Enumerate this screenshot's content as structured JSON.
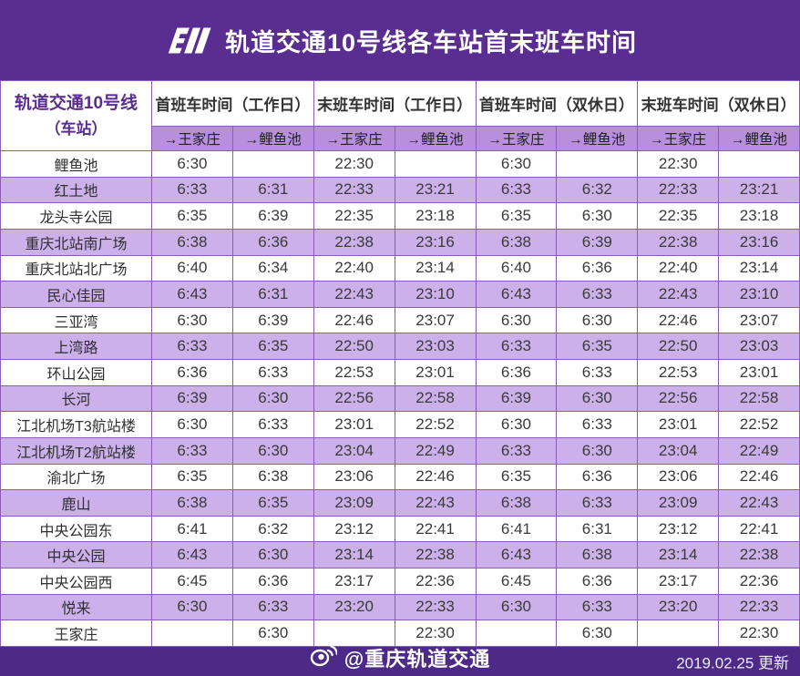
{
  "header": {
    "logo_icon": "crt-logo",
    "title": "轨道交通10号线各车站首末班车时间"
  },
  "table": {
    "corner": {
      "line1": "轨道交通10号线",
      "line2": "（车站）"
    },
    "group_headers": [
      "首班车时间（工作日）",
      "末班车时间（工作日）",
      "首班车时间（双休日）",
      "末班车时间（双休日）"
    ],
    "direction_headers": [
      "→王家庄",
      "→鲤鱼池"
    ],
    "rows": [
      {
        "station": "鲤鱼池",
        "times": [
          "6:30",
          "",
          "22:30",
          "",
          "6:30",
          "",
          "22:30",
          ""
        ]
      },
      {
        "station": "红土地",
        "times": [
          "6:33",
          "6:31",
          "22:33",
          "23:21",
          "6:33",
          "6:32",
          "22:33",
          "23:21"
        ]
      },
      {
        "station": "龙头寺公园",
        "times": [
          "6:35",
          "6:39",
          "22:35",
          "23:18",
          "6:35",
          "6:30",
          "22:35",
          "23:18"
        ]
      },
      {
        "station": "重庆北站南广场",
        "times": [
          "6:38",
          "6:36",
          "22:38",
          "23:16",
          "6:38",
          "6:39",
          "22:38",
          "23:16"
        ]
      },
      {
        "station": "重庆北站北广场",
        "times": [
          "6:40",
          "6:34",
          "22:40",
          "23:14",
          "6:40",
          "6:36",
          "22:40",
          "23:14"
        ]
      },
      {
        "station": "民心佳园",
        "times": [
          "6:43",
          "6:31",
          "22:43",
          "23:10",
          "6:43",
          "6:33",
          "22:43",
          "23:10"
        ]
      },
      {
        "station": "三亚湾",
        "times": [
          "6:30",
          "6:39",
          "22:46",
          "23:07",
          "6:30",
          "6:30",
          "22:46",
          "23:07"
        ]
      },
      {
        "station": "上湾路",
        "times": [
          "6:33",
          "6:35",
          "22:50",
          "23:03",
          "6:33",
          "6:35",
          "22:50",
          "23:03"
        ]
      },
      {
        "station": "环山公园",
        "times": [
          "6:36",
          "6:33",
          "22:53",
          "23:01",
          "6:36",
          "6:33",
          "22:53",
          "23:01"
        ]
      },
      {
        "station": "长河",
        "times": [
          "6:39",
          "6:30",
          "22:56",
          "22:58",
          "6:39",
          "6:30",
          "22:56",
          "22:58"
        ]
      },
      {
        "station": "江北机场T3航站楼",
        "times": [
          "6:30",
          "6:33",
          "23:01",
          "22:52",
          "6:30",
          "6:33",
          "23:01",
          "22:52"
        ]
      },
      {
        "station": "江北机场T2航站楼",
        "times": [
          "6:33",
          "6:30",
          "23:04",
          "22:49",
          "6:33",
          "6:30",
          "23:04",
          "22:49"
        ]
      },
      {
        "station": "渝北广场",
        "times": [
          "6:35",
          "6:38",
          "23:06",
          "22:46",
          "6:35",
          "6:36",
          "23:06",
          "22:46"
        ]
      },
      {
        "station": "鹿山",
        "times": [
          "6:38",
          "6:35",
          "23:09",
          "22:43",
          "6:38",
          "6:33",
          "23:09",
          "22:43"
        ]
      },
      {
        "station": "中央公园东",
        "times": [
          "6:41",
          "6:32",
          "23:12",
          "22:41",
          "6:41",
          "6:31",
          "23:12",
          "22:41"
        ]
      },
      {
        "station": "中央公园",
        "times": [
          "6:43",
          "6:30",
          "23:14",
          "22:38",
          "6:43",
          "6:38",
          "23:14",
          "22:38"
        ]
      },
      {
        "station": "中央公园西",
        "times": [
          "6:45",
          "6:36",
          "23:17",
          "22:36",
          "6:45",
          "6:36",
          "23:17",
          "22:36"
        ]
      },
      {
        "station": "悦来",
        "times": [
          "6:30",
          "6:33",
          "23:20",
          "22:33",
          "6:30",
          "6:33",
          "23:20",
          "22:33"
        ]
      },
      {
        "station": "王家庄",
        "times": [
          "",
          "6:30",
          "",
          "22:30",
          "",
          "6:30",
          "",
          "22:30"
        ]
      }
    ]
  },
  "footer": {
    "weibo_icon": "weibo-icon",
    "weibo_handle": "@重庆轨道交通",
    "update_date": "2019.02.25 更新"
  },
  "colors": {
    "band_top": "#5a2e90",
    "band_bottom": "#4d2a87",
    "grid_border": "#8a5cb5",
    "subheader_bg": "#b78fdc",
    "zebra_row_bg": "#cbb0e9",
    "corner_text": "#5b2d8e"
  }
}
